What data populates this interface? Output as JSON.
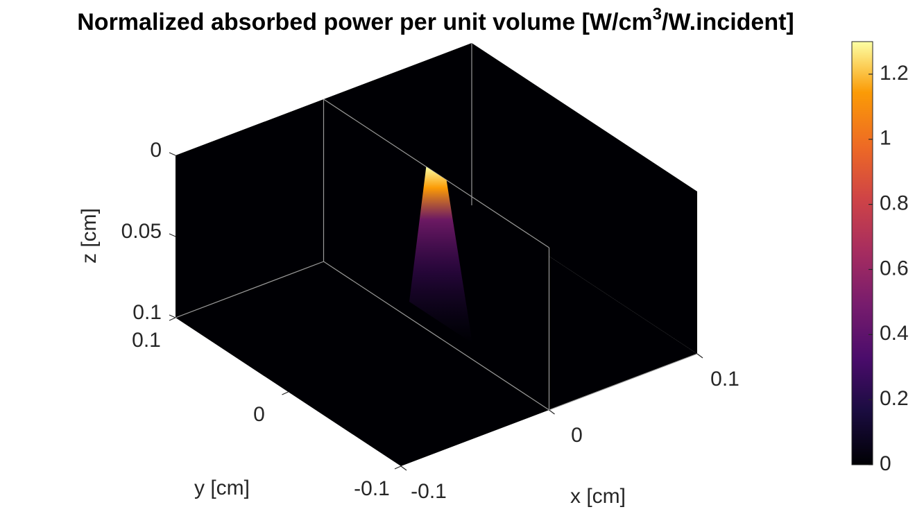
{
  "chart_data": {
    "type": "volume-slice",
    "title": "Normalized absorbed power per unit volume [W/cm",
    "title_superscript": "3",
    "title_end": "/W.incident]",
    "x_label": "x [cm]",
    "y_label": "y [cm]",
    "z_label": "z [cm]",
    "xlim": [
      -0.1,
      0.1
    ],
    "xticks": [
      -0.1,
      0,
      0.1
    ],
    "ylim": [
      -0.1,
      0.1
    ],
    "yticks": [
      -0.1,
      0,
      0.1
    ],
    "zlim": [
      0,
      0.1
    ],
    "zticks": [
      0,
      0.05,
      0.1
    ],
    "z_reversed": true,
    "slice_x": 0,
    "peak_value": 1.29,
    "clim": [
      0,
      1.3
    ],
    "cticks": [
      0,
      0.2,
      0.4,
      0.6,
      0.8,
      1,
      1.2
    ],
    "colormap": "inferno"
  }
}
